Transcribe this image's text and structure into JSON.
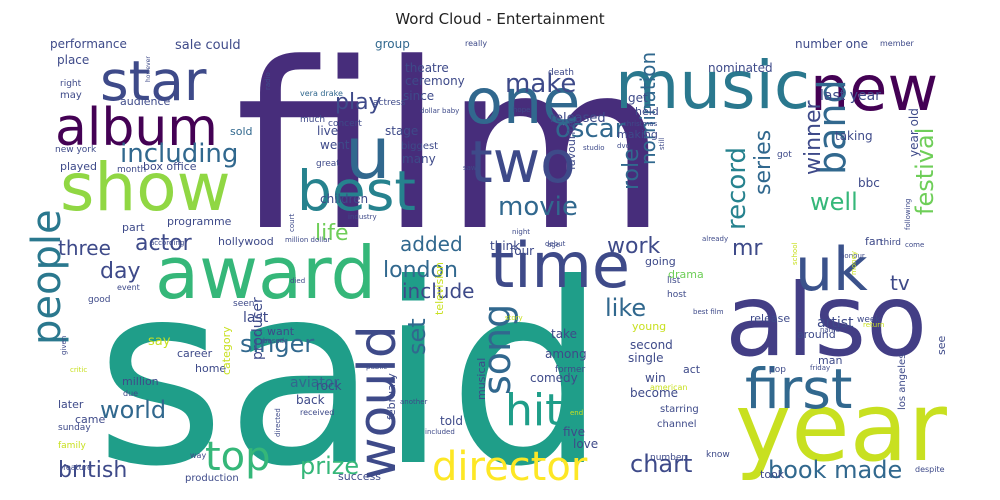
{
  "chart_data": {
    "type": "wordcloud",
    "title": "Word Cloud - Entertainment",
    "colormap": "viridis",
    "background": "#ffffff",
    "words": [
      {
        "text": "said",
        "weight": 1.0,
        "color": "#1f9e89"
      },
      {
        "text": "film",
        "weight": 0.98,
        "color": "#472d7b"
      },
      {
        "text": "year",
        "weight": 0.55,
        "color": "#c8e020"
      },
      {
        "text": "also",
        "weight": 0.52,
        "color": "#433e85"
      },
      {
        "text": "award",
        "weight": 0.42,
        "color": "#35b779"
      },
      {
        "text": "music",
        "weight": 0.4,
        "color": "#2a788e"
      },
      {
        "text": "show",
        "weight": 0.4,
        "color": "#90d743"
      },
      {
        "text": "time",
        "weight": 0.37,
        "color": "#3e4a89"
      },
      {
        "text": "star",
        "weight": 0.36,
        "color": "#3e4a89"
      },
      {
        "text": "one",
        "weight": 0.36,
        "color": "#31688e"
      },
      {
        "text": "new",
        "weight": 0.36,
        "color": "#440154"
      },
      {
        "text": "best",
        "weight": 0.34,
        "color": "#26828e"
      },
      {
        "text": "two",
        "weight": 0.32,
        "color": "#3e4a89"
      },
      {
        "text": "uk",
        "weight": 0.32,
        "color": "#3b528b"
      },
      {
        "text": "first",
        "weight": 0.31,
        "color": "#31688e"
      },
      {
        "text": "album",
        "weight": 0.3,
        "color": "#440154"
      },
      {
        "text": "u",
        "weight": 0.36,
        "color": "#31688e"
      },
      {
        "text": "would",
        "weight": 0.28,
        "color": "#3e4a89"
      },
      {
        "text": "band",
        "weight": 0.28,
        "color": "#31688e"
      },
      {
        "text": "people",
        "weight": 0.24,
        "color": "#2a788e"
      },
      {
        "text": "director",
        "weight": 0.24,
        "color": "#fde725"
      },
      {
        "text": "top",
        "weight": 0.22,
        "color": "#35b779"
      },
      {
        "text": "hit",
        "weight": 0.22,
        "color": "#1f9e89"
      },
      {
        "text": "song",
        "weight": 0.2,
        "color": "#31688e"
      },
      {
        "text": "including",
        "weight": 0.17,
        "color": "#31688e"
      },
      {
        "text": "make",
        "weight": 0.17,
        "color": "#3e4a89"
      },
      {
        "text": "oscar",
        "weight": 0.17,
        "color": "#31688e"
      },
      {
        "text": "record",
        "weight": 0.16,
        "color": "#26828e"
      },
      {
        "text": "movie",
        "weight": 0.16,
        "color": "#31688e"
      },
      {
        "text": "world",
        "weight": 0.16,
        "color": "#31688e"
      },
      {
        "text": "chart",
        "weight": 0.16,
        "color": "#3e4a89"
      },
      {
        "text": "book made",
        "weight": 0.15,
        "color": "#31688e"
      },
      {
        "text": "british",
        "weight": 0.15,
        "color": "#3e4a89"
      },
      {
        "text": "prize",
        "weight": 0.15,
        "color": "#35b779"
      },
      {
        "text": "singer",
        "weight": 0.15,
        "color": "#31688e"
      },
      {
        "text": "festival",
        "weight": 0.15,
        "color": "#6ece58"
      },
      {
        "text": "well",
        "weight": 0.15,
        "color": "#35b779"
      },
      {
        "text": "series",
        "weight": 0.15,
        "color": "#31688e"
      },
      {
        "text": "winner",
        "weight": 0.14,
        "color": "#3e4a89"
      },
      {
        "text": "play",
        "weight": 0.14,
        "color": "#3e4a89"
      },
      {
        "text": "like",
        "weight": 0.14,
        "color": "#31688e"
      },
      {
        "text": "life",
        "weight": 0.14,
        "color": "#6ece58"
      },
      {
        "text": "actor",
        "weight": 0.14,
        "color": "#3e4a89"
      },
      {
        "text": "london",
        "weight": 0.14,
        "color": "#31688e"
      },
      {
        "text": "three",
        "weight": 0.13,
        "color": "#3e4a89"
      },
      {
        "text": "day",
        "weight": 0.13,
        "color": "#3e4a89"
      },
      {
        "text": "added",
        "weight": 0.13,
        "color": "#31688e"
      },
      {
        "text": "include",
        "weight": 0.13,
        "color": "#3e4a89"
      },
      {
        "text": "work",
        "weight": 0.13,
        "color": "#3e4a89"
      },
      {
        "text": "role",
        "weight": 0.13,
        "color": "#31688e"
      },
      {
        "text": "nomination",
        "weight": 0.13,
        "color": "#31688e"
      },
      {
        "text": "mr",
        "weight": 0.13,
        "color": "#3e4a89"
      },
      {
        "text": "tv",
        "weight": 0.13,
        "color": "#3e4a89"
      },
      {
        "text": "set",
        "weight": 0.12,
        "color": "#31688e"
      },
      {
        "text": "last",
        "weight": 0.09,
        "color": "#3e4a89"
      },
      {
        "text": "aviator",
        "weight": 0.09,
        "color": "#31688e"
      },
      {
        "text": "producer",
        "weight": 0.09,
        "color": "#3e4a89"
      },
      {
        "text": "artist",
        "weight": 0.09,
        "color": "#3e4a89"
      },
      {
        "text": "last year",
        "weight": 0.08,
        "color": "#3e4a89"
      },
      {
        "text": "sale could",
        "weight": 0.08,
        "color": "#3e4a89"
      },
      {
        "text": "performance",
        "weight": 0.08,
        "color": "#3e4a89"
      },
      {
        "text": "group",
        "weight": 0.08,
        "color": "#31688e"
      },
      {
        "text": "theatre",
        "weight": 0.08,
        "color": "#3e4a89"
      },
      {
        "text": "ceremony",
        "weight": 0.08,
        "color": "#3e4a89"
      },
      {
        "text": "since",
        "weight": 0.08,
        "color": "#3e4a89"
      },
      {
        "text": "released",
        "weight": 0.08,
        "color": "#3e4a89"
      },
      {
        "text": "nominated",
        "weight": 0.07,
        "color": "#3e4a89"
      },
      {
        "text": "number one",
        "weight": 0.07,
        "color": "#3e4a89"
      },
      {
        "text": "place",
        "weight": 0.08,
        "color": "#3e4a89"
      },
      {
        "text": "stage",
        "weight": 0.07,
        "color": "#3e4a89"
      },
      {
        "text": "live",
        "weight": 0.07,
        "color": "#3e4a89"
      },
      {
        "text": "went",
        "weight": 0.07,
        "color": "#3e4a89"
      },
      {
        "text": "many",
        "weight": 0.07,
        "color": "#3e4a89"
      },
      {
        "text": "children",
        "weight": 0.07,
        "color": "#3e4a89"
      },
      {
        "text": "think",
        "weight": 0.07,
        "color": "#3e4a89"
      },
      {
        "text": "four",
        "weight": 0.07,
        "color": "#3e4a89"
      },
      {
        "text": "get",
        "weight": 0.07,
        "color": "#3e4a89"
      },
      {
        "text": "audience",
        "weight": 0.06,
        "color": "#3e4a89"
      },
      {
        "text": "sold",
        "weight": 0.06,
        "color": "#31688e"
      },
      {
        "text": "played",
        "weight": 0.06,
        "color": "#3e4a89"
      },
      {
        "text": "box office",
        "weight": 0.06,
        "color": "#3e4a89"
      },
      {
        "text": "programme",
        "weight": 0.06,
        "color": "#3e4a89"
      },
      {
        "text": "hollywood",
        "weight": 0.06,
        "color": "#3e4a89"
      },
      {
        "text": "part",
        "weight": 0.06,
        "color": "#3e4a89"
      },
      {
        "text": "taking",
        "weight": 0.07,
        "color": "#3e4a89"
      },
      {
        "text": "bbc",
        "weight": 0.06,
        "color": "#3e4a89"
      },
      {
        "text": "year old",
        "weight": 0.06,
        "color": "#3e4a89"
      },
      {
        "text": "fan",
        "weight": 0.06,
        "color": "#3e4a89"
      },
      {
        "text": "going",
        "weight": 0.06,
        "color": "#3e4a89"
      },
      {
        "text": "drama",
        "weight": 0.06,
        "color": "#6ece58"
      },
      {
        "text": "release",
        "weight": 0.06,
        "color": "#3e4a89"
      },
      {
        "text": "take",
        "weight": 0.07,
        "color": "#3e4a89"
      },
      {
        "text": "among",
        "weight": 0.06,
        "color": "#3e4a89"
      },
      {
        "text": "second",
        "weight": 0.06,
        "color": "#3e4a89"
      },
      {
        "text": "single",
        "weight": 0.06,
        "color": "#3e4a89"
      },
      {
        "text": "win",
        "weight": 0.06,
        "color": "#3e4a89"
      },
      {
        "text": "become",
        "weight": 0.06,
        "color": "#3e4a89"
      },
      {
        "text": "comedy",
        "weight": 0.06,
        "color": "#3e4a89"
      },
      {
        "text": "rock",
        "weight": 0.06,
        "color": "#3e4a89"
      },
      {
        "text": "back",
        "weight": 0.06,
        "color": "#3e4a89"
      },
      {
        "text": "told",
        "weight": 0.06,
        "color": "#3e4a89"
      },
      {
        "text": "five",
        "weight": 0.06,
        "color": "#3e4a89"
      },
      {
        "text": "love",
        "weight": 0.06,
        "color": "#3e4a89"
      },
      {
        "text": "success",
        "weight": 0.06,
        "color": "#3e4a89"
      },
      {
        "text": "want",
        "weight": 0.06,
        "color": "#3e4a89"
      },
      {
        "text": "say",
        "weight": 0.06,
        "color": "#c8e020"
      },
      {
        "text": "career",
        "weight": 0.06,
        "color": "#3e4a89"
      },
      {
        "text": "home",
        "weight": 0.06,
        "color": "#3e4a89"
      },
      {
        "text": "million",
        "weight": 0.05,
        "color": "#3e4a89"
      },
      {
        "text": "later",
        "weight": 0.05,
        "color": "#3e4a89"
      },
      {
        "text": "came",
        "weight": 0.05,
        "color": "#3e4a89"
      },
      {
        "text": "man",
        "weight": 0.06,
        "color": "#3e4a89"
      },
      {
        "text": "around",
        "weight": 0.06,
        "color": "#3e4a89"
      },
      {
        "text": "act",
        "weight": 0.05,
        "color": "#3e4a89"
      },
      {
        "text": "see",
        "weight": 0.05,
        "color": "#3e4a89"
      },
      {
        "text": "category",
        "weight": 0.05,
        "color": "#c8e020"
      },
      {
        "text": "february",
        "weight": 0.05,
        "color": "#3e4a89"
      },
      {
        "text": "musical",
        "weight": 0.05,
        "color": "#3e4a89"
      },
      {
        "text": "television",
        "weight": 0.05,
        "color": "#c8e020"
      },
      {
        "text": "favourite",
        "weight": 0.05,
        "color": "#3e4a89"
      },
      {
        "text": "making",
        "weight": 0.05,
        "color": "#3e4a89"
      },
      {
        "text": "held",
        "weight": 0.05,
        "color": "#3e4a89"
      },
      {
        "text": "young",
        "weight": 0.05,
        "color": "#c8e020"
      },
      {
        "text": "starring",
        "weight": 0.05,
        "color": "#3e4a89"
      },
      {
        "text": "channel",
        "weight": 0.05,
        "color": "#3e4a89"
      },
      {
        "text": "los angeles",
        "weight": 0.05,
        "color": "#3e4a89"
      },
      {
        "text": "took",
        "weight": 0.05,
        "color": "#3e4a89"
      },
      {
        "text": "production",
        "weight": 0.05,
        "color": "#3e4a89"
      },
      {
        "text": "biggest",
        "weight": 0.05,
        "color": "#3e4a89"
      },
      {
        "text": "actress",
        "weight": 0.05,
        "color": "#3e4a89"
      },
      {
        "text": "concert",
        "weight": 0.05,
        "color": "#3e4a89"
      },
      {
        "text": "great",
        "weight": 0.05,
        "color": "#3e4a89"
      },
      {
        "text": "much",
        "weight": 0.05,
        "color": "#3e4a89"
      },
      {
        "text": "death",
        "weight": 0.05,
        "color": "#3e4a89"
      },
      {
        "text": "really",
        "weight": 0.05,
        "color": "#3e4a89"
      },
      {
        "text": "member",
        "weight": 0.05,
        "color": "#3e4a89"
      },
      {
        "text": "right",
        "weight": 0.05,
        "color": "#3e4a89"
      },
      {
        "text": "may",
        "weight": 0.05,
        "color": "#3e4a89"
      },
      {
        "text": "month",
        "weight": 0.05,
        "color": "#3e4a89"
      },
      {
        "text": "new york",
        "weight": 0.04,
        "color": "#3e4a89"
      },
      {
        "text": "got",
        "weight": 0.04,
        "color": "#3e4a89"
      },
      {
        "text": "good",
        "weight": 0.04,
        "color": "#3e4a89"
      },
      {
        "text": "event",
        "weight": 0.04,
        "color": "#3e4a89"
      },
      {
        "text": "seen",
        "weight": 0.04,
        "color": "#3e4a89"
      },
      {
        "text": "week",
        "weight": 0.04,
        "color": "#3e4a89"
      },
      {
        "text": "host",
        "weight": 0.04,
        "color": "#3e4a89"
      },
      {
        "text": "list",
        "weight": 0.04,
        "color": "#3e4a89"
      },
      {
        "text": "third",
        "weight": 0.04,
        "color": "#3e4a89"
      },
      {
        "text": "pop",
        "weight": 0.04,
        "color": "#3e4a89"
      },
      {
        "text": "american",
        "weight": 0.04,
        "color": "#c8e020"
      },
      {
        "text": "former",
        "weight": 0.04,
        "color": "#3e4a89"
      },
      {
        "text": "number",
        "weight": 0.04,
        "color": "#3e4a89"
      },
      {
        "text": "know",
        "weight": 0.04,
        "color": "#3e4a89"
      },
      {
        "text": "sunday",
        "weight": 0.04,
        "color": "#3e4a89"
      },
      {
        "text": "family",
        "weight": 0.04,
        "color": "#c8e020"
      },
      {
        "text": "way",
        "weight": 0.04,
        "color": "#3e4a89"
      },
      {
        "text": "due",
        "weight": 0.04,
        "color": "#3e4a89"
      },
      {
        "text": "feature",
        "weight": 0.03,
        "color": "#3e4a89"
      },
      {
        "text": "received",
        "weight": 0.04,
        "color": "#3e4a89"
      },
      {
        "text": "despite",
        "weight": 0.04,
        "color": "#3e4a89"
      },
      {
        "text": "vera drake",
        "weight": 0.03,
        "color": "#31688e"
      },
      {
        "text": "dollar baby",
        "weight": 0.03,
        "color": "#3e4a89"
      },
      {
        "text": "radio",
        "weight": 0.03,
        "color": "#3e4a89"
      },
      {
        "text": "however",
        "weight": 0.03,
        "color": "#3e4a89"
      },
      {
        "text": "hope",
        "weight": 0.03,
        "color": "#3e4a89"
      },
      {
        "text": "saw",
        "weight": 0.03,
        "color": "#3e4a89"
      },
      {
        "text": "studio",
        "weight": 0.03,
        "color": "#3e4a89"
      },
      {
        "text": "dvd",
        "weight": 0.03,
        "color": "#3e4a89"
      },
      {
        "text": "christmas",
        "weight": 0.03,
        "color": "#3e4a89"
      },
      {
        "text": "still",
        "weight": 0.03,
        "color": "#3e4a89"
      },
      {
        "text": "debut",
        "weight": 0.03,
        "color": "#3e4a89"
      },
      {
        "text": "court",
        "weight": 0.03,
        "color": "#3e4a89"
      },
      {
        "text": "industry",
        "weight": 0.03,
        "color": "#3e4a89"
      },
      {
        "text": "million dollar",
        "weight": 0.03,
        "color": "#3e4a89"
      },
      {
        "text": "according",
        "weight": 0.03,
        "color": "#3e4a89"
      },
      {
        "text": "night",
        "weight": 0.03,
        "color": "#3e4a89"
      },
      {
        "text": "age",
        "weight": 0.03,
        "color": "#3e4a89"
      },
      {
        "text": "already",
        "weight": 0.03,
        "color": "#3e4a89"
      },
      {
        "text": "school",
        "weight": 0.03,
        "color": "#c8e020"
      },
      {
        "text": "honour",
        "weight": 0.03,
        "color": "#3e4a89"
      },
      {
        "text": "following",
        "weight": 0.03,
        "color": "#3e4a89"
      },
      {
        "text": "come",
        "weight": 0.03,
        "color": "#3e4a89"
      },
      {
        "text": "money",
        "weight": 0.03,
        "color": "#c8e020"
      },
      {
        "text": "story",
        "weight": 0.03,
        "color": "#c8e020"
      },
      {
        "text": "died",
        "weight": 0.03,
        "color": "#3e4a89"
      },
      {
        "text": "best film",
        "weight": 0.03,
        "color": "#3e4a89"
      },
      {
        "text": "return",
        "weight": 0.03,
        "color": "#c8e020"
      },
      {
        "text": "name",
        "weight": 0.03,
        "color": "#3e4a89"
      },
      {
        "text": "based",
        "weight": 0.03,
        "color": "#3e4a89"
      },
      {
        "text": "public",
        "weight": 0.03,
        "color": "#3e4a89"
      },
      {
        "text": "friday",
        "weight": 0.03,
        "color": "#3e4a89"
      },
      {
        "text": "given",
        "weight": 0.03,
        "color": "#3e4a89"
      },
      {
        "text": "critic",
        "weight": 0.03,
        "color": "#c8e020"
      },
      {
        "text": "another",
        "weight": 0.03,
        "color": "#3e4a89"
      },
      {
        "text": "end",
        "weight": 0.03,
        "color": "#c8e020"
      },
      {
        "text": "included",
        "weight": 0.03,
        "color": "#3e4a89"
      },
      {
        "text": "directed",
        "weight": 0.03,
        "color": "#3e4a89"
      }
    ]
  }
}
